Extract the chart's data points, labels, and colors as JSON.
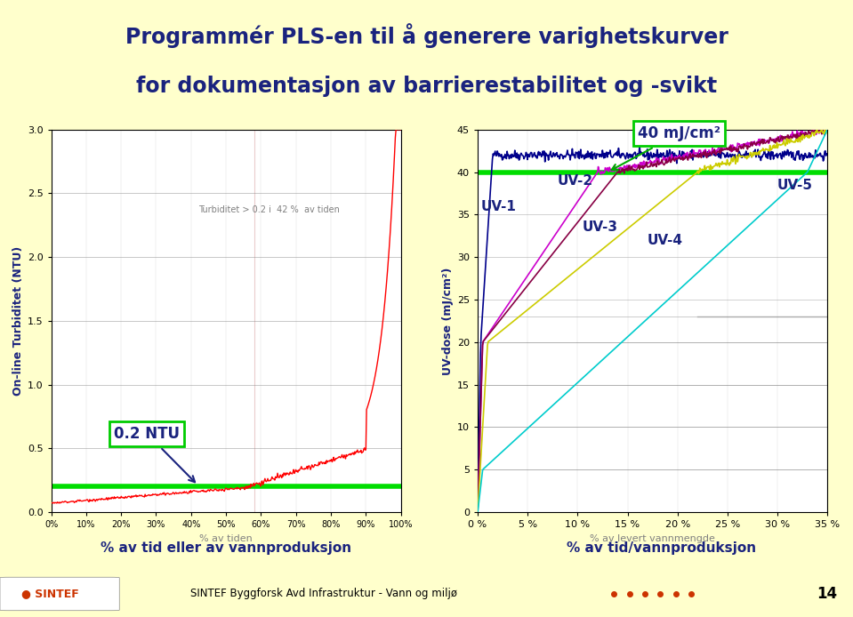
{
  "title_line1": "Programmér PLS-en til å generere varighetskurver",
  "title_line2": "for dokumentasjon av barrierestabilitet og -svikt",
  "title_bg": "#ffffcc",
  "title_color": "#1a237e",
  "footer_text": "SINTEF Byggforsk Avd Infrastruktur - Vann og miljø",
  "footer_page": "14",
  "left_chart": {
    "ylabel": "On-line Turbiditet (NTU)",
    "xlabel": "% av tid eller av vannproduksjon",
    "xlabel_sub": "% av tiden",
    "ylim": [
      0,
      3.0
    ],
    "xlim": [
      0,
      100
    ],
    "yticks": [
      0.0,
      0.5,
      1.0,
      1.5,
      2.0,
      2.5,
      3.0
    ],
    "ytick_labels": [
      "0.0",
      "0.5",
      "1.0",
      "1.5",
      "2.0",
      "2.5",
      "3.0"
    ],
    "xticks": [
      0,
      10,
      20,
      30,
      40,
      50,
      60,
      70,
      80,
      90,
      100
    ],
    "xtick_labels": [
      "0%",
      "10%",
      "20%",
      "30%",
      "40%",
      "50%",
      "60%",
      "70%",
      "80%",
      "90%",
      "100%"
    ],
    "green_line_y": 0.2,
    "annotation_text": "Turbiditet > 0.2 i  42 %  av tiden",
    "box_text": "0.2 NTU",
    "box_color": "#ffffff",
    "box_edge": "#00cc00"
  },
  "right_chart": {
    "ylabel": "UV-dose (mJ/cm²)",
    "xlabel": "% av tid/vannproduksjon",
    "xlabel_sub": "% av levert vannmengde",
    "ylim": [
      0,
      45
    ],
    "xlim": [
      0,
      35
    ],
    "yticks": [
      0,
      5,
      10,
      15,
      20,
      25,
      30,
      35,
      40,
      45
    ],
    "ytick_labels": [
      "0",
      "5",
      "10",
      "15",
      "20",
      "25",
      "30",
      "35",
      "40",
      "45"
    ],
    "xticks": [
      0,
      5,
      10,
      15,
      20,
      25,
      30,
      35
    ],
    "xtick_labels": [
      "0 %",
      "5 %",
      "10 %",
      "15 %",
      "20 %",
      "25 %",
      "30 %",
      "35 %"
    ],
    "green_line_y": 40,
    "annotation_text": "40 mJ/cm²",
    "box_color": "#ffffff",
    "box_edge": "#00cc00",
    "uv_colors": [
      "#00008b",
      "#cc00cc",
      "#880044",
      "#cccc00",
      "#00cccc"
    ]
  }
}
